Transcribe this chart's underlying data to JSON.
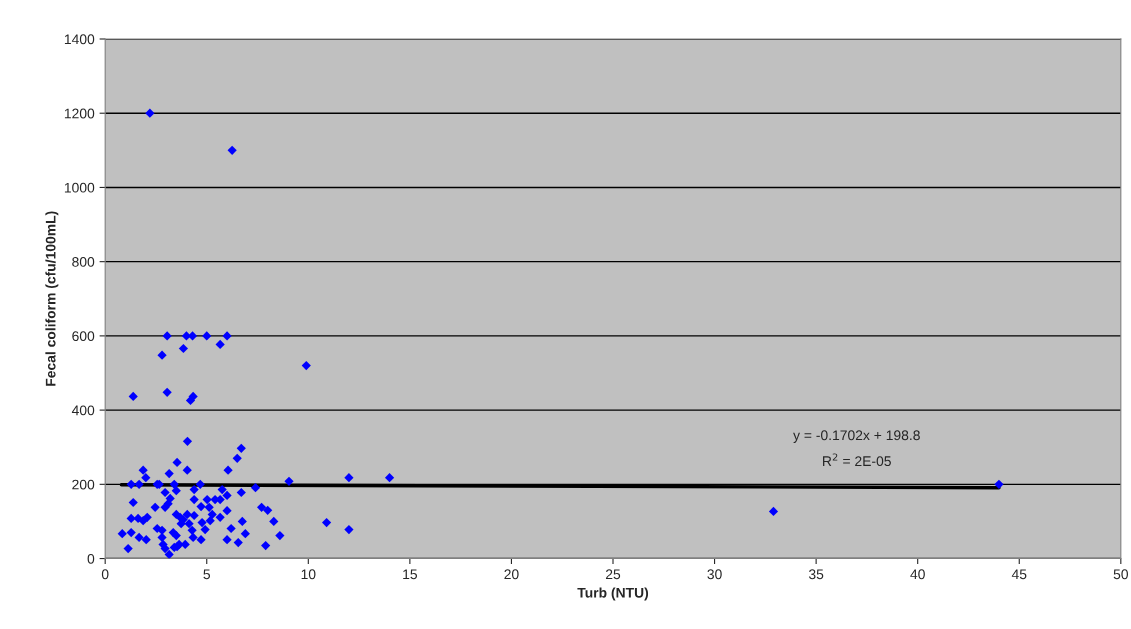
{
  "chart_data": {
    "type": "scatter",
    "xlabel": "Turb (NTU)",
    "ylabel": "Fecal coliform (cfu/100mL)",
    "xlim": [
      0,
      50
    ],
    "ylim": [
      0,
      1400
    ],
    "xticks": [
      0,
      5,
      10,
      15,
      20,
      25,
      30,
      35,
      40,
      45,
      50
    ],
    "yticks": [
      0,
      200,
      400,
      600,
      800,
      1000,
      1200,
      1400
    ],
    "grid": "y",
    "legend": false,
    "series": [
      {
        "color": "#0000ff",
        "marker": "diamond",
        "x": [
          2.2,
          6.25,
          9.9,
          3.05,
          4.0,
          4.3,
          5.0,
          6.0,
          2.8,
          3.85,
          5.66,
          1.38,
          3.05,
          4.2,
          4.33,
          6.7,
          6.5,
          9.05,
          12,
          6.7,
          7.4,
          7.7,
          8.0,
          8.3,
          8.6,
          7.9,
          10.9,
          12,
          6.75,
          6.9,
          6.55,
          14,
          4.05,
          3.54,
          1.87,
          3.15,
          4.04,
          2.0,
          6.05,
          1.28,
          1.67,
          2.56,
          2.66,
          3.4,
          4.68,
          2.95,
          3.5,
          4.38,
          5.76,
          3.2,
          4.38,
          5.02,
          5.41,
          5.66,
          6.0,
          1.38,
          3.1,
          4.72,
          2.46,
          2.95,
          5.12,
          3.5,
          4.04,
          4.38,
          5.27,
          5.66,
          6.0,
          1.28,
          1.62,
          1.87,
          2.07,
          3.84,
          4.77,
          4.13,
          3.74,
          5.17,
          3.69,
          0.84,
          1.28,
          2.56,
          2.8,
          3.35,
          4.28,
          4.92,
          6.2,
          2.8,
          3.5,
          1.67,
          2.02,
          4.33,
          4.72,
          6.0,
          2.85,
          3.54,
          3.94,
          1.13,
          2.95,
          3.15,
          3.4,
          3.64,
          32.9,
          44
        ],
        "values": [
          1200,
          1100,
          520,
          600,
          600,
          600,
          600,
          600,
          548,
          566,
          577,
          437,
          448,
          426,
          437,
          297,
          270,
          208,
          218,
          178,
          191,
          138,
          130,
          100,
          62,
          35,
          97,
          78,
          100,
          67,
          43,
          218,
          316,
          259,
          238,
          229,
          238,
          218,
          238,
          200,
          200,
          200,
          200,
          200,
          200,
          178,
          183,
          186,
          186,
          162,
          159,
          159,
          159,
          159,
          170,
          151,
          148,
          140,
          138,
          138,
          138,
          119,
          119,
          116,
          119,
          111,
          129,
          108,
          108,
          102,
          111,
          105,
          97,
          94,
          94,
          102,
          111,
          67,
          70,
          81,
          76,
          70,
          76,
          78,
          81,
          57,
          62,
          57,
          51,
          57,
          51,
          51,
          38,
          32,
          38,
          27,
          27,
          11,
          30,
          38,
          127,
          200
        ]
      },
      {
        "type": "line",
        "color": "#000000",
        "line_style": "solid",
        "x": [
          0.8,
          44
        ],
        "values": [
          199,
          191
        ]
      }
    ],
    "annotations": [
      "y = -0.1702x + 198.8",
      "R$^{2}$ = 2E-05"
    ]
  }
}
